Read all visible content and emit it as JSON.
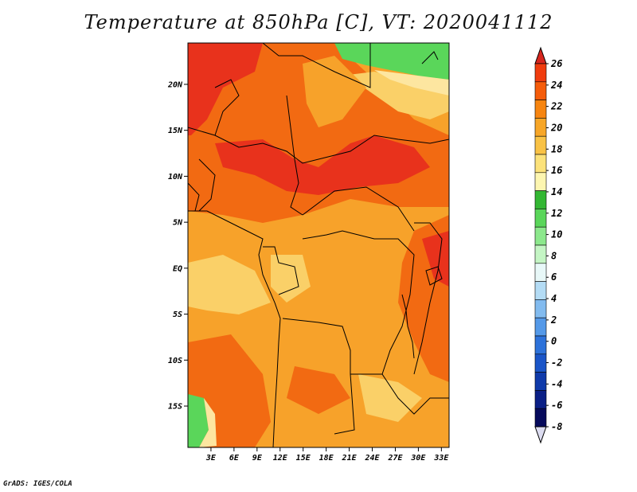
{
  "title": "Temperature at 850hPa [C], VT: 2020041112",
  "credit": "GrADS: IGES/COLA",
  "map": {
    "lat_ticks": [
      "20N",
      "15N",
      "10N",
      "5N",
      "EQ",
      "5S",
      "10S",
      "15S"
    ],
    "lon_ticks": [
      "3E",
      "6E",
      "9E",
      "12E",
      "15E",
      "18E",
      "21E",
      "24E",
      "27E",
      "30E",
      "33E"
    ],
    "lat_range": [
      -19.5,
      24.5
    ],
    "lon_range": [
      0,
      34
    ]
  },
  "colorbar": {
    "labels": [
      "26",
      "24",
      "22",
      "20",
      "18",
      "16",
      "14",
      "12",
      "10",
      "8",
      "6",
      "4",
      "2",
      "0",
      "-2",
      "-4",
      "-6",
      "-8"
    ],
    "colors": [
      "#d7261e",
      "#f03c0e",
      "#f55c0a",
      "#f78510",
      "#f7a627",
      "#f9c245",
      "#fce27a",
      "#fdf6b0",
      "#33b733",
      "#5ad65a",
      "#8ce88c",
      "#c4f5c4",
      "#e8f8f8",
      "#b4dcf5",
      "#82bbef",
      "#5499e8",
      "#2d72da",
      "#1a55c8",
      "#0f3aaa",
      "#0a1f86",
      "#060a5c",
      "#dcdcf0"
    ]
  },
  "colors": {
    "hot": "#e8321c",
    "warm": "#f26a12",
    "orange": "#f7a22a",
    "light": "#fad068",
    "pale": "#fde6a0",
    "green": "#5ad65a",
    "borders": "#000000"
  }
}
